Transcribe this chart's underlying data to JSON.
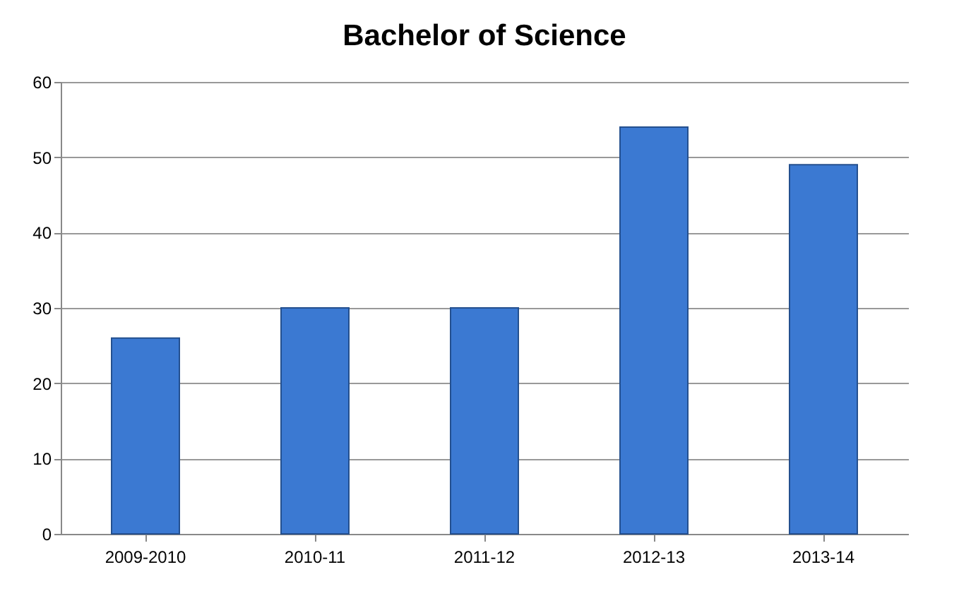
{
  "chart_data": {
    "type": "bar",
    "title": "Bachelor of Science",
    "categories": [
      "2009-2010",
      "2010-11",
      "2011-12",
      "2012-13",
      "2013-14"
    ],
    "values": [
      26,
      30,
      30,
      54,
      49
    ],
    "color": "#3b79d2",
    "ylim": [
      0,
      60
    ],
    "yticks": [
      0,
      10,
      20,
      30,
      40,
      50,
      60
    ],
    "grid": "y"
  }
}
